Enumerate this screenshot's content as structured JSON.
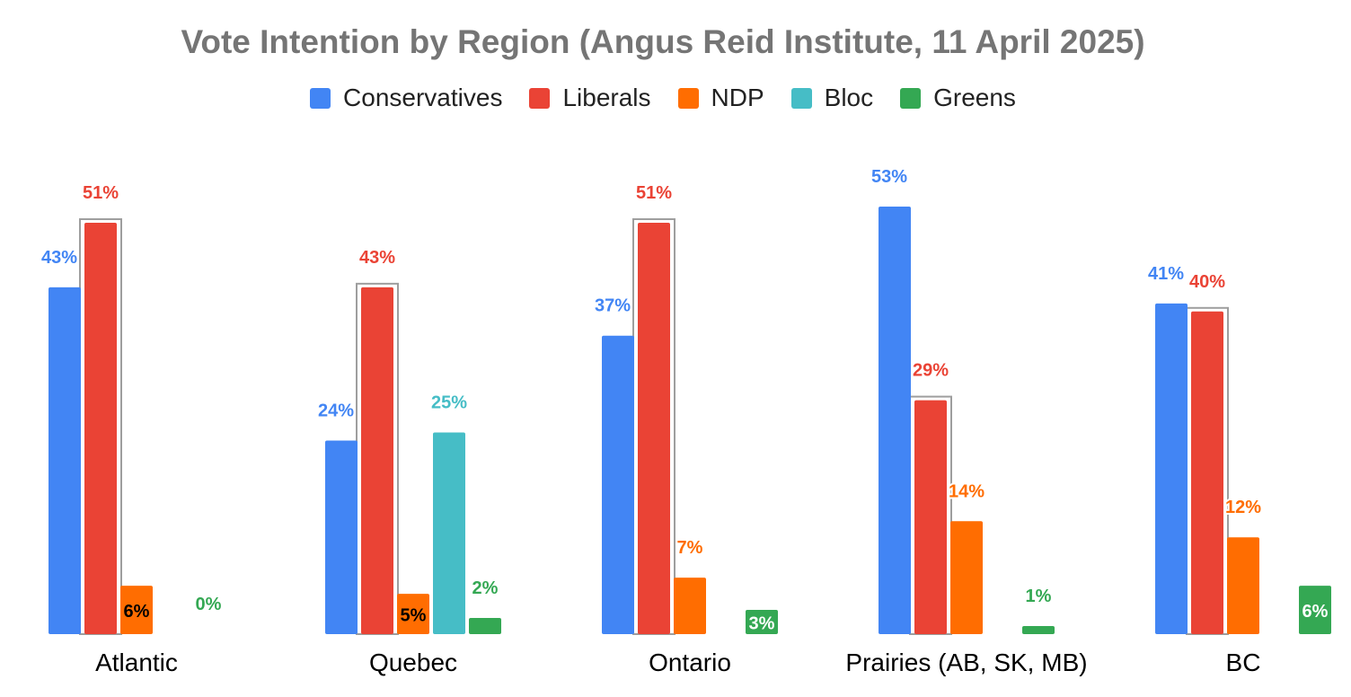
{
  "chart_data": {
    "type": "bar",
    "title": "Vote Intention by Region (Angus Reid Institute, 11 April 2025)",
    "xlabel": "",
    "ylabel": "",
    "ylim": [
      0,
      60
    ],
    "grid": false,
    "legend_position": "top",
    "categories": [
      "Atlantic",
      "Quebec",
      "Ontario",
      "Prairies (AB, SK, MB)",
      "BC"
    ],
    "series": [
      {
        "name": "Conservatives",
        "color": "#4285F4",
        "values": [
          43,
          24,
          37,
          53,
          41
        ],
        "labels": [
          "43%",
          "24%",
          "37%",
          "53%",
          "41%"
        ]
      },
      {
        "name": "Liberals",
        "color": "#EA4335",
        "values": [
          51,
          43,
          51,
          29,
          40
        ],
        "labels": [
          "51%",
          "43%",
          "51%",
          "29%",
          "40%"
        ]
      },
      {
        "name": "NDP",
        "color": "#FF6D01",
        "values": [
          6,
          5,
          7,
          14,
          12
        ],
        "labels": [
          "6%",
          "5%",
          "7%",
          "14%",
          "12%"
        ]
      },
      {
        "name": "Bloc",
        "color": "#46BDC6",
        "values": [
          null,
          25,
          null,
          null,
          null
        ],
        "labels": [
          null,
          "25%",
          null,
          null,
          null
        ]
      },
      {
        "name": "Greens",
        "color": "#34A853",
        "values": [
          0,
          2,
          3,
          1,
          6
        ],
        "labels": [
          "0%",
          "2%",
          "3%",
          "1%",
          "6%"
        ]
      }
    ]
  }
}
